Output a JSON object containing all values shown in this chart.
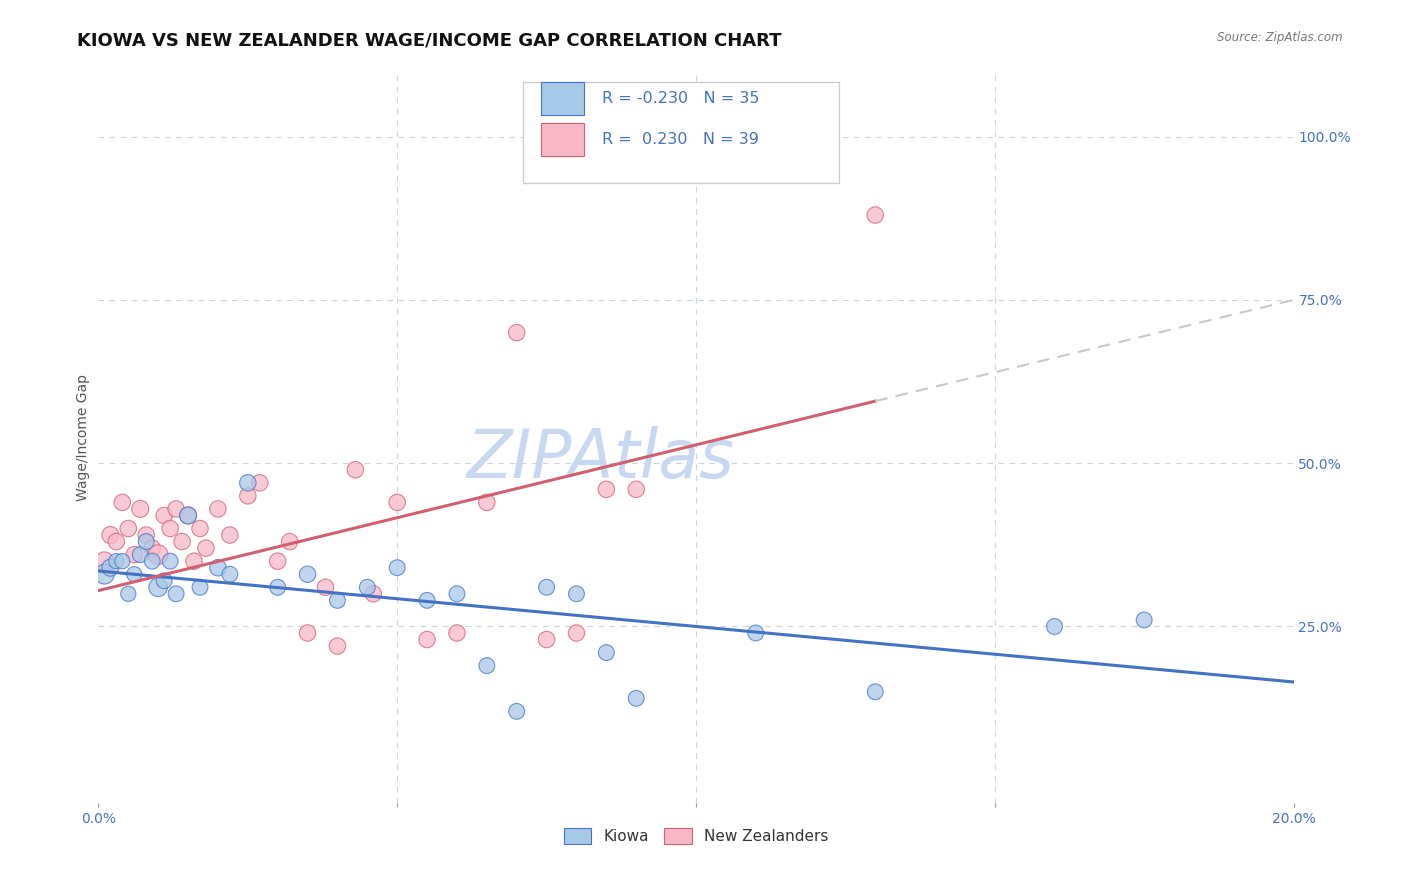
{
  "title": "KIOWA VS NEW ZEALANDER WAGE/INCOME GAP CORRELATION CHART",
  "source": "Source: ZipAtlas.com",
  "ylabel": "Wage/Income Gap",
  "xlim": [
    0.0,
    0.2
  ],
  "ylim": [
    -0.02,
    1.1
  ],
  "plot_ylim": [
    0.0,
    1.05
  ],
  "right_yticks": [
    0.25,
    0.5,
    0.75,
    1.0
  ],
  "right_yticklabels": [
    "25.0%",
    "50.0%",
    "75.0%",
    "100.0%"
  ],
  "kiowa_color": "#a8c8e8",
  "nz_color": "#f8b8c8",
  "kiowa_line_color": "#4472c4",
  "nz_line_color": "#d06070",
  "dash_line_color": "#c8c8c8",
  "kiowa_R": -0.23,
  "kiowa_N": 35,
  "nz_R": 0.23,
  "nz_N": 39,
  "watermark": "ZIPAtlas",
  "watermark_color": "#c8d8f0",
  "kiowa_x": [
    0.001,
    0.002,
    0.003,
    0.004,
    0.005,
    0.006,
    0.007,
    0.008,
    0.009,
    0.01,
    0.011,
    0.012,
    0.013,
    0.015,
    0.017,
    0.02,
    0.022,
    0.025,
    0.03,
    0.035,
    0.04,
    0.045,
    0.05,
    0.055,
    0.06,
    0.065,
    0.07,
    0.075,
    0.08,
    0.085,
    0.09,
    0.11,
    0.13,
    0.16,
    0.175
  ],
  "kiowa_y": [
    0.33,
    0.34,
    0.35,
    0.35,
    0.3,
    0.33,
    0.36,
    0.38,
    0.35,
    0.31,
    0.32,
    0.35,
    0.3,
    0.42,
    0.31,
    0.34,
    0.33,
    0.47,
    0.31,
    0.33,
    0.29,
    0.31,
    0.34,
    0.29,
    0.3,
    0.19,
    0.12,
    0.31,
    0.3,
    0.21,
    0.14,
    0.24,
    0.15,
    0.25,
    0.26
  ],
  "kiowa_size": [
    200,
    150,
    120,
    120,
    120,
    120,
    130,
    130,
    130,
    180,
    130,
    130,
    130,
    150,
    130,
    140,
    130,
    140,
    130,
    140,
    130,
    130,
    130,
    130,
    130,
    130,
    130,
    130,
    130,
    130,
    130,
    130,
    130,
    130,
    130
  ],
  "nz_x": [
    0.001,
    0.002,
    0.003,
    0.004,
    0.005,
    0.006,
    0.007,
    0.008,
    0.009,
    0.01,
    0.011,
    0.012,
    0.013,
    0.014,
    0.015,
    0.016,
    0.017,
    0.018,
    0.02,
    0.022,
    0.025,
    0.027,
    0.03,
    0.032,
    0.035,
    0.038,
    0.04,
    0.043,
    0.046,
    0.05,
    0.055,
    0.06,
    0.065,
    0.07,
    0.075,
    0.08,
    0.085,
    0.09,
    0.13
  ],
  "nz_y": [
    0.35,
    0.39,
    0.38,
    0.44,
    0.4,
    0.36,
    0.43,
    0.39,
    0.37,
    0.36,
    0.42,
    0.4,
    0.43,
    0.38,
    0.42,
    0.35,
    0.4,
    0.37,
    0.43,
    0.39,
    0.45,
    0.47,
    0.35,
    0.38,
    0.24,
    0.31,
    0.22,
    0.49,
    0.3,
    0.44,
    0.23,
    0.24,
    0.44,
    0.7,
    0.23,
    0.24,
    0.46,
    0.46,
    0.88
  ],
  "nz_size": [
    180,
    150,
    140,
    140,
    140,
    140,
    150,
    140,
    140,
    200,
    140,
    140,
    140,
    140,
    150,
    140,
    140,
    140,
    140,
    140,
    140,
    140,
    140,
    140,
    140,
    140,
    140,
    140,
    140,
    140,
    140,
    140,
    140,
    140,
    140,
    140,
    140,
    140,
    140
  ],
  "trend_kiowa_x0": 0.0,
  "trend_kiowa_y0": 0.335,
  "trend_kiowa_x1": 0.2,
  "trend_kiowa_y1": 0.165,
  "trend_nz_x0": 0.0,
  "trend_nz_y0": 0.305,
  "trend_nz_x1": 0.13,
  "trend_nz_y1": 0.595,
  "trend_nz_dash_x0": 0.13,
  "trend_nz_dash_y0": 0.595,
  "trend_nz_dash_x1": 0.2,
  "trend_nz_dash_y1": 0.75,
  "background_color": "#ffffff",
  "grid_color": "#c8d4e0",
  "title_fontsize": 13,
  "axis_label_fontsize": 10,
  "tick_fontsize": 10,
  "legend_R_color": "#4472c4"
}
